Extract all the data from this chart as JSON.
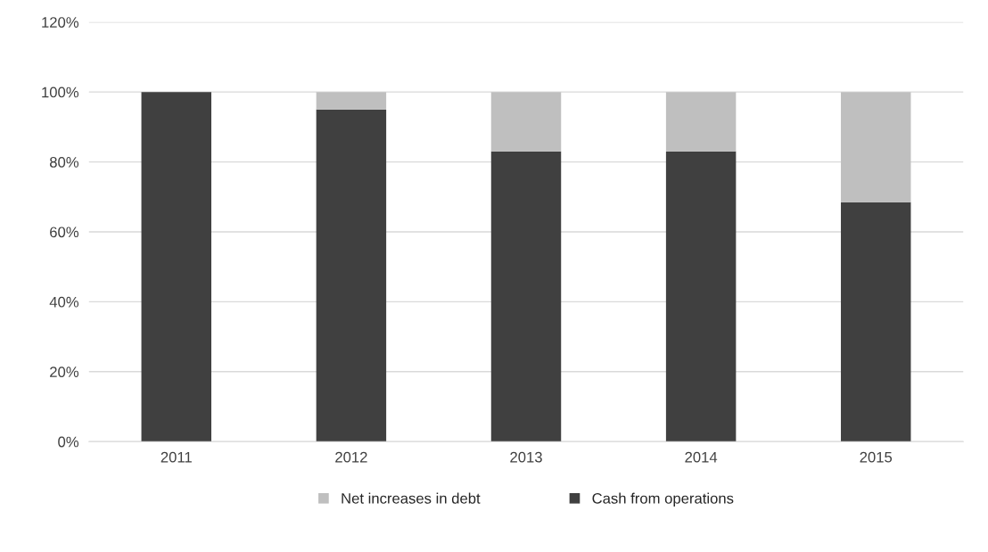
{
  "chart_data": {
    "type": "bar",
    "stacked": true,
    "categories": [
      "2011",
      "2012",
      "2013",
      "2014",
      "2015"
    ],
    "series": [
      {
        "name": "Cash from operations",
        "color": "#404040",
        "values": [
          100,
          95,
          83,
          83,
          68.5
        ]
      },
      {
        "name": "Net increases in debt",
        "color": "#bfbfbf",
        "values": [
          null,
          5,
          17,
          17,
          31.5
        ]
      }
    ],
    "ylim": [
      0,
      120
    ],
    "yticks": [
      {
        "value": 0,
        "label": "0%"
      },
      {
        "value": 20,
        "label": "20%"
      },
      {
        "value": 40,
        "label": "40%"
      },
      {
        "value": 60,
        "label": "60%"
      },
      {
        "value": 80,
        "label": "80%"
      },
      {
        "value": 100,
        "label": "100%"
      },
      {
        "value": 120,
        "label": "120%"
      }
    ],
    "grid": "y",
    "legend": "bottom"
  }
}
